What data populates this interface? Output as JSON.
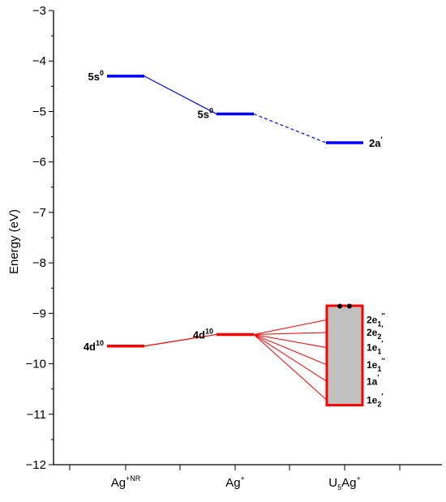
{
  "chart_data": {
    "type": "energy-level-diagram",
    "ylabel": "Energy (eV)",
    "ylim": [
      -12,
      -3
    ],
    "y_major_ticks": [
      -3,
      -4,
      -5,
      -6,
      -7,
      -8,
      -9,
      -10,
      -11,
      -12
    ],
    "categories": [
      {
        "base": "Ag",
        "sup": "+NR",
        "sub": ""
      },
      {
        "base": "Ag",
        "sup": "+",
        "sub": ""
      },
      {
        "base": "U",
        "sub": "5",
        "base2": "Ag",
        "sup": "+"
      }
    ],
    "levels": [
      {
        "category": 0,
        "energy": -4.3,
        "color": "#0000ff",
        "label_base": "5s",
        "label_sup": "0",
        "label_side": "left"
      },
      {
        "category": 1,
        "energy": -5.05,
        "color": "#0000ff",
        "label_base": "5s",
        "label_sup": "0",
        "label_side": "left"
      },
      {
        "category": 2,
        "energy": -5.62,
        "color": "#0000ff",
        "label_base": "2a",
        "label_sup": "′",
        "label_side": "right"
      },
      {
        "category": 0,
        "energy": -9.65,
        "color": "#ff0000",
        "label_base": "4d",
        "label_sup": "10",
        "label_side": "left"
      },
      {
        "category": 1,
        "energy": -9.42,
        "color": "#ff0000",
        "label_base": "4d",
        "label_sup": "10",
        "label_side": "left"
      }
    ],
    "connectors": [
      {
        "from": 0,
        "to": 1,
        "style": "solid",
        "color": "#0000ff"
      },
      {
        "from": 1,
        "to": 2,
        "style": "dashed",
        "color": "#0000ff"
      },
      {
        "from": 3,
        "to": 4,
        "style": "solid",
        "color": "#ff0000"
      }
    ],
    "band": {
      "category": 2,
      "top": -8.85,
      "bottom": -10.82,
      "fill": "#c0c0c0",
      "edge": "#ff0000",
      "electron_count": 2,
      "fan_from_level": 4,
      "fan_color": "#ff0000",
      "orbitals": [
        {
          "base": "2e",
          "sub": "1",
          "sup": "″",
          "energy": -9.13
        },
        {
          "base": "2e",
          "sub": "2",
          "sup": "′",
          "energy": -9.38
        },
        {
          "base": "1e",
          "sub": "1",
          "sup": "′",
          "energy": -9.68
        },
        {
          "base": "1e",
          "sub": "1",
          "sup": "″",
          "energy": -10.02
        },
        {
          "base": "1a",
          "sub": "",
          "sup": "′",
          "energy": -10.35
        },
        {
          "base": "1e",
          "sub": "2",
          "sup": "′",
          "energy": -10.72
        }
      ]
    }
  }
}
